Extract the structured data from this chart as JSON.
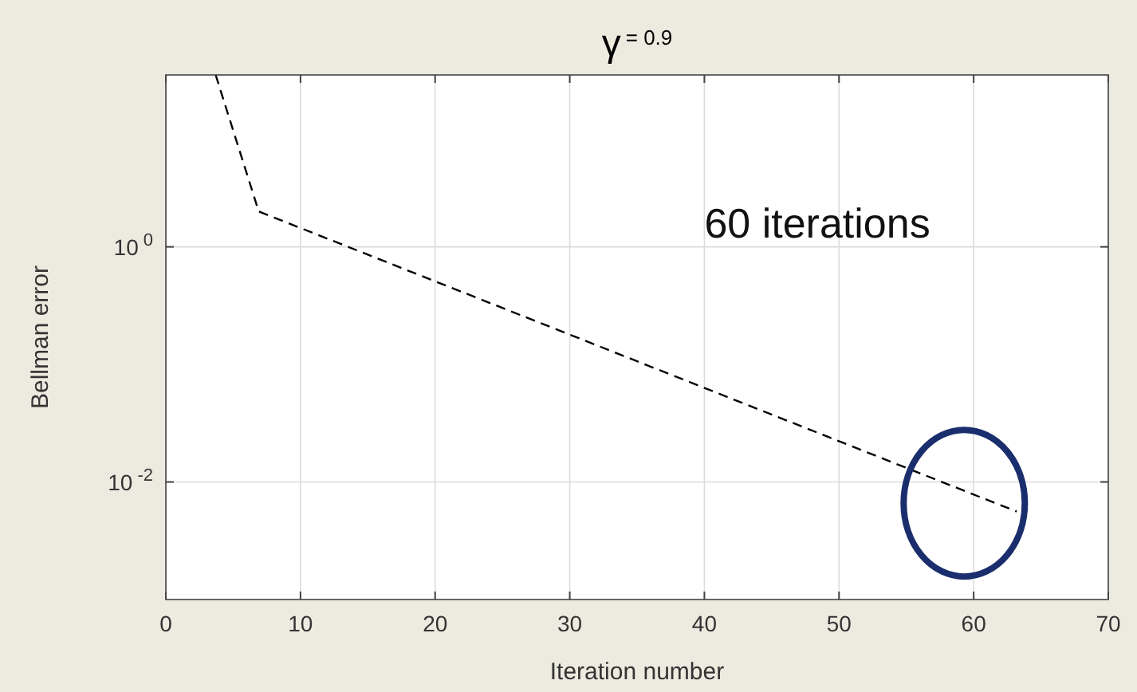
{
  "chart_data": {
    "type": "line",
    "title": "γ$^{= 0.9}$",
    "xlabel": "Iteration number",
    "ylabel": "Bellman error",
    "x": [
      3.7,
      6.9,
      63.2
    ],
    "series": [
      {
        "color": "#000000",
        "values": [
          29,
          2.0,
          0.0056
        ]
      }
    ],
    "line_style": "dashed",
    "marker": "none",
    "log": true,
    "grid": true,
    "xlim": [
      0,
      70
    ],
    "xticks": [
      0,
      10,
      20,
      30,
      40,
      50,
      60,
      70
    ],
    "ylim": [
      0.001,
      29
    ],
    "yticks": [
      {
        "value": 1,
        "label": "10$^{0}$"
      },
      {
        "value": 0.01,
        "label": "10$^{-2}$"
      }
    ],
    "annotations": [
      "60 iterations"
    ]
  }
}
